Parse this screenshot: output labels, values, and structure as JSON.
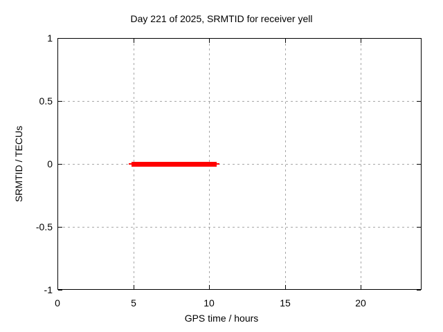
{
  "chart_data": {
    "type": "line",
    "title": "Day 221 of 2025, SRMTID for receiver yell",
    "xlabel": "GPS time / hours",
    "ylabel": "SRMTID / TECUs",
    "xlim": [
      0,
      24
    ],
    "ylim": [
      -1,
      1
    ],
    "xticks": [
      0,
      5,
      10,
      15,
      20
    ],
    "yticks": [
      1,
      0.5,
      0,
      -0.5,
      -1
    ],
    "grid": true,
    "legend_position": "none",
    "series": [
      {
        "name": "SRMTID",
        "color": "#ff0000",
        "style": "thick-line",
        "y_value": 0,
        "x_start": 4.9,
        "x_end": 10.5,
        "points": [
          [
            4.9,
            0
          ],
          [
            10.5,
            0
          ]
        ]
      }
    ]
  },
  "colors": {
    "background": "#ffffff",
    "axis": "#000000",
    "grid": "#a6a6a6",
    "text": "#000000",
    "series_red": "#ff0000"
  }
}
